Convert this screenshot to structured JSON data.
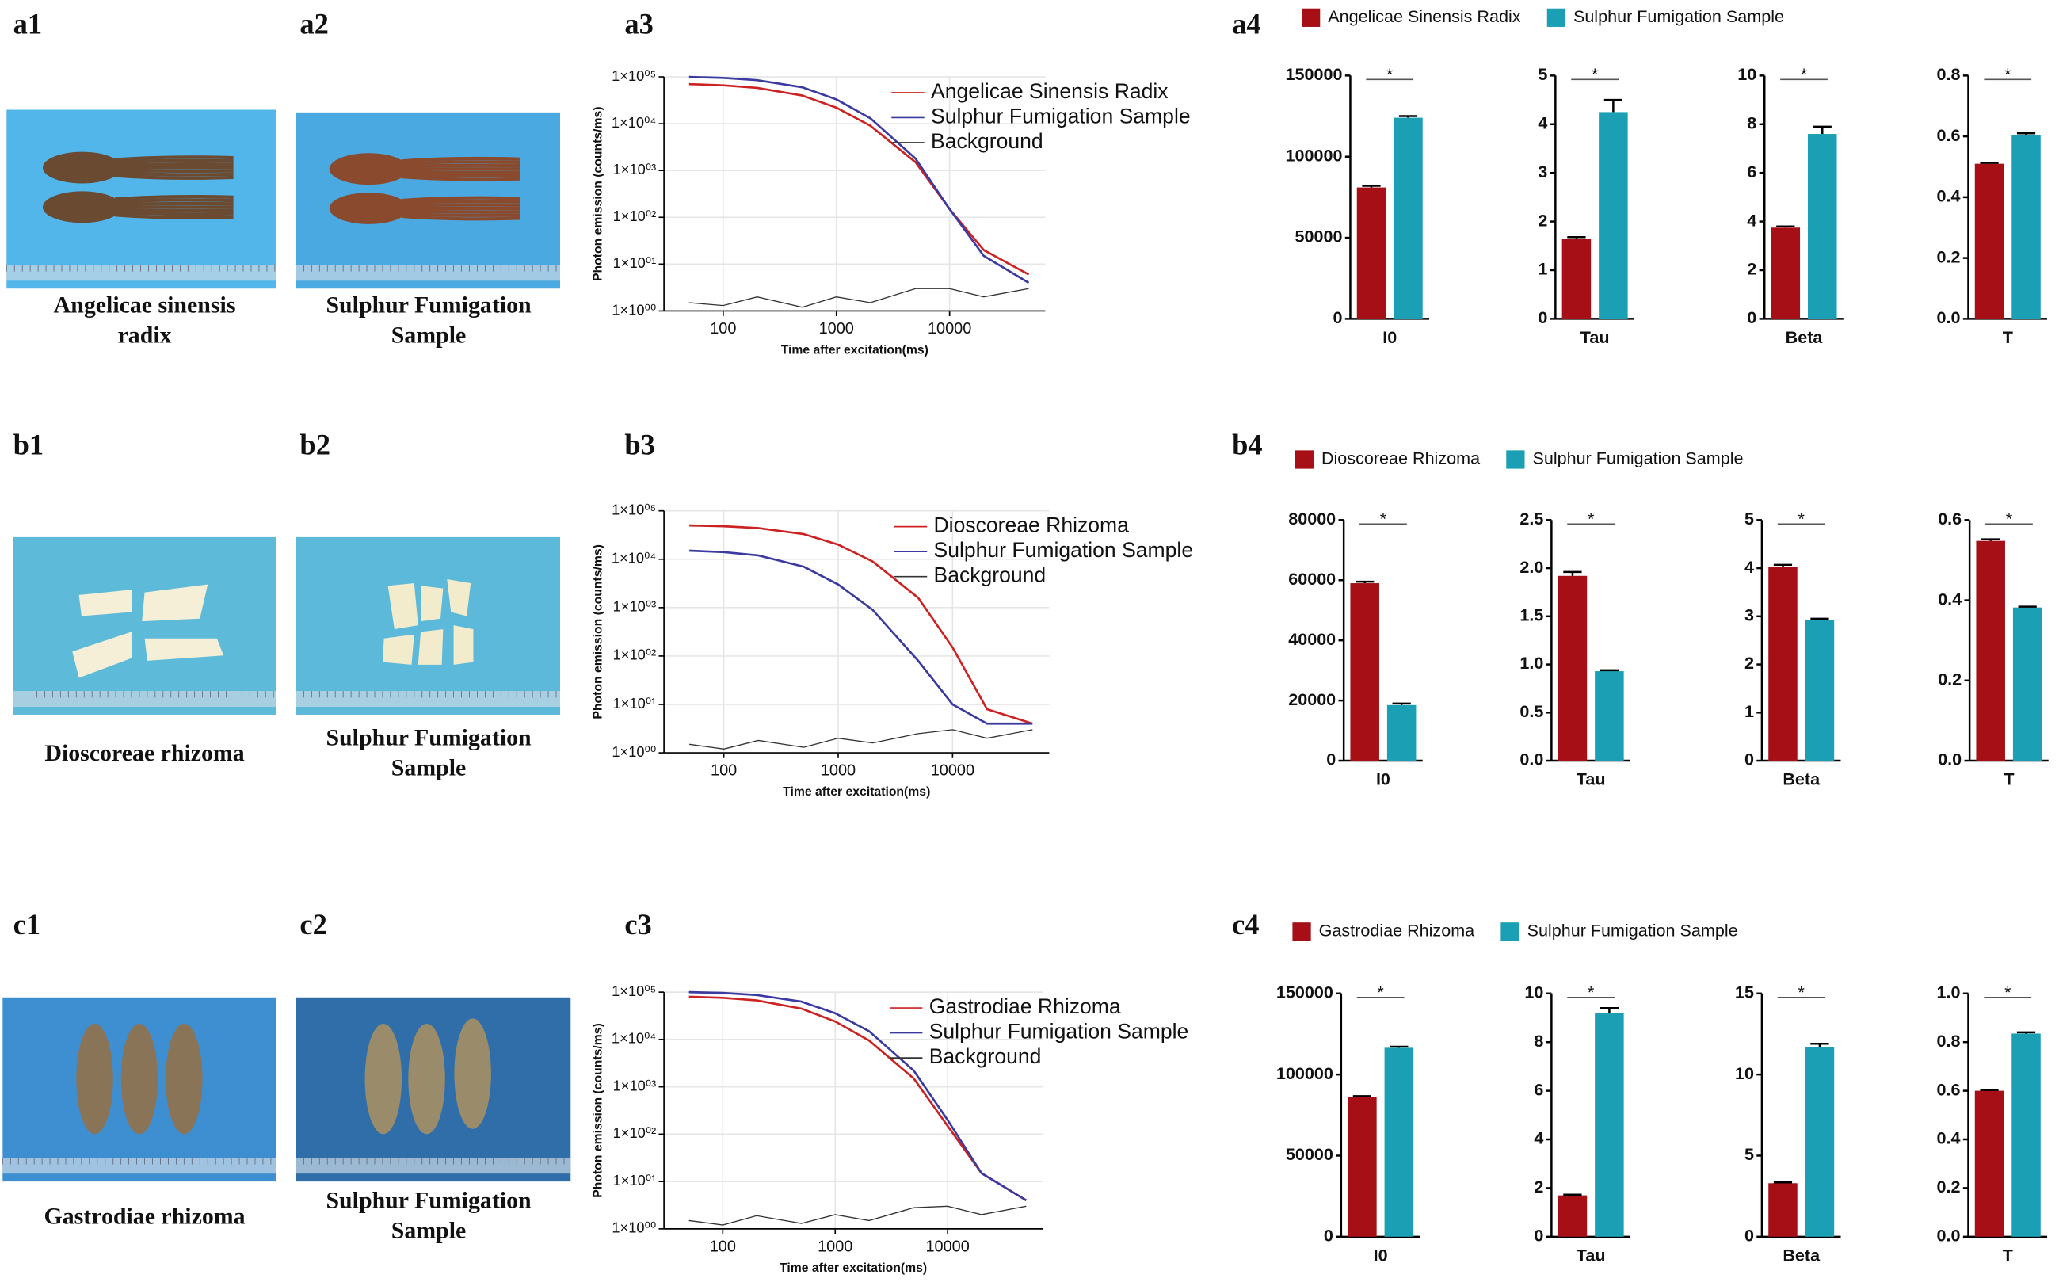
{
  "photos": [
    {
      "label": "a1",
      "caption": [
        "Angelicae sinensis",
        "radix"
      ]
    },
    {
      "label": "a2",
      "caption": [
        "Sulphur Fumigation",
        "Sample"
      ]
    },
    {
      "label": "b1",
      "caption": [
        "Dioscoreae rhizoma"
      ]
    },
    {
      "label": "b2",
      "caption": [
        "Sulphur Fumigation",
        "Sample"
      ]
    },
    {
      "label": "c1",
      "caption": [
        "Gastrodiae rhizoma"
      ]
    },
    {
      "label": "c2",
      "caption": [
        "Sulphur Fumigation",
        "Sample"
      ]
    }
  ],
  "chart_data": [
    {
      "type": "line",
      "label": "a3",
      "xlabel": "Time after excitation(ms)",
      "ylabel": "Photon emission (counts/ms)",
      "xscale": "log",
      "yscale": "log",
      "grid": true,
      "x": [
        50,
        100,
        200,
        500,
        1000,
        2000,
        5000,
        10000,
        20000,
        50000
      ],
      "series": [
        {
          "name": "Angelicae Sinensis Radix",
          "color": "#cc2222",
          "values": [
            70000,
            66000,
            58000,
            40000,
            22000,
            9000,
            1500,
            150,
            20,
            6
          ]
        },
        {
          "name": "Sulphur Fumigation Sample",
          "color": "#3a3aa0",
          "values": [
            100000,
            95000,
            85000,
            60000,
            33000,
            13000,
            1800,
            150,
            15,
            4
          ]
        },
        {
          "name": "Background",
          "color": "#333333",
          "values": [
            1.5,
            1.3,
            2,
            1.2,
            2,
            1.5,
            3,
            3,
            2,
            3
          ]
        }
      ],
      "xlim": [
        30,
        70000
      ],
      "ylim": [
        1,
        100000
      ],
      "xticks": [
        100,
        1000,
        10000
      ],
      "yticks": [
        {
          "value": 1,
          "label": "1×10⁰⁰"
        },
        {
          "value": 10,
          "label": "1×10⁰¹"
        },
        {
          "value": 100,
          "label": "1×10⁰²"
        },
        {
          "value": 1000,
          "label": "1×10⁰³"
        },
        {
          "value": 10000,
          "label": "1×10⁰⁴"
        },
        {
          "value": 100000,
          "label": "1×10⁰⁵"
        }
      ]
    },
    {
      "type": "bar",
      "label": "a4",
      "series": [
        {
          "name": "Angelicae Sinensis Radix",
          "color": "#a50f15"
        },
        {
          "name": "Sulphur Fumigation Sample",
          "color": "#1b9fb4"
        }
      ],
      "subplots": [
        {
          "category": "I0",
          "values": [
            81000,
            124000
          ],
          "errors": [
            1000,
            1000
          ],
          "annotation": "*",
          "ylim": [
            0,
            150000
          ],
          "yticks": [
            0,
            50000,
            100000,
            150000
          ]
        },
        {
          "category": "Tau",
          "values": [
            1.65,
            4.25
          ],
          "errors": [
            0.03,
            0.25
          ],
          "annotation": "*",
          "ylim": [
            0,
            5
          ],
          "yticks": [
            0,
            1,
            2,
            3,
            4,
            5
          ]
        },
        {
          "category": "Beta",
          "values": [
            3.75,
            7.6
          ],
          "errors": [
            0.05,
            0.3
          ],
          "annotation": "*",
          "ylim": [
            0,
            10
          ],
          "yticks": [
            0,
            2,
            4,
            6,
            8,
            10
          ]
        },
        {
          "category": "T",
          "values": [
            0.51,
            0.605
          ],
          "errors": [
            0.003,
            0.005
          ],
          "annotation": "*",
          "ylim": [
            0,
            0.8
          ],
          "yticks": [
            {
              "value": 0,
              "label": "0.0"
            },
            0.2,
            0.4,
            0.6,
            0.8
          ]
        }
      ]
    },
    {
      "type": "line",
      "label": "b3",
      "xlabel": "Time after excitation(ms)",
      "ylabel": "Photon emission (counts/ms)",
      "xscale": "log",
      "yscale": "log",
      "grid": true,
      "x": [
        50,
        100,
        200,
        500,
        1000,
        2000,
        5000,
        10000,
        20000,
        50000
      ],
      "series": [
        {
          "name": "Dioscoreae Rhizoma",
          "color": "#cc2222",
          "values": [
            50000,
            48000,
            44000,
            33000,
            20000,
            9000,
            1600,
            150,
            8,
            4
          ]
        },
        {
          "name": "Sulphur Fumigation Sample",
          "color": "#3a3aa0",
          "values": [
            15000,
            14000,
            12000,
            7000,
            3000,
            900,
            80,
            10,
            4,
            4
          ]
        },
        {
          "name": "Background",
          "color": "#333333",
          "values": [
            1.5,
            1.2,
            1.8,
            1.3,
            2,
            1.6,
            2.5,
            3,
            2,
            3
          ]
        }
      ],
      "xlim": [
        30,
        70000
      ],
      "ylim": [
        1,
        100000
      ],
      "xticks": [
        100,
        1000,
        10000
      ],
      "yticks": [
        {
          "value": 1,
          "label": "1×10⁰⁰"
        },
        {
          "value": 10,
          "label": "1×10⁰¹"
        },
        {
          "value": 100,
          "label": "1×10⁰²"
        },
        {
          "value": 1000,
          "label": "1×10⁰³"
        },
        {
          "value": 10000,
          "label": "1×10⁰⁴"
        },
        {
          "value": 100000,
          "label": "1×10⁰⁵"
        }
      ]
    },
    {
      "type": "bar",
      "label": "b4",
      "series": [
        {
          "name": "Dioscoreae Rhizoma",
          "color": "#a50f15"
        },
        {
          "name": "Sulphur Fumigation Sample",
          "color": "#1b9fb4"
        }
      ],
      "subplots": [
        {
          "category": "I0",
          "values": [
            59000,
            18500
          ],
          "errors": [
            500,
            500
          ],
          "annotation": "*",
          "ylim": [
            0,
            80000
          ],
          "yticks": [
            0,
            20000,
            40000,
            60000,
            80000
          ]
        },
        {
          "category": "Tau",
          "values": [
            1.92,
            0.93
          ],
          "errors": [
            0.04,
            0.01
          ],
          "annotation": "*",
          "ylim": [
            0,
            2.5
          ],
          "yticks": [
            {
              "value": 0,
              "label": "0.0"
            },
            0.5,
            {
              "value": 1,
              "label": "1.0"
            },
            1.5,
            {
              "value": 2,
              "label": "2.0"
            },
            2.5
          ]
        },
        {
          "category": "Beta",
          "values": [
            4.02,
            2.93
          ],
          "errors": [
            0.05,
            0.02
          ],
          "annotation": "*",
          "ylim": [
            0,
            5
          ],
          "yticks": [
            0,
            1,
            2,
            3,
            4,
            5
          ]
        },
        {
          "category": "T",
          "values": [
            0.548,
            0.382
          ],
          "errors": [
            0.004,
            0.002
          ],
          "annotation": "*",
          "ylim": [
            0,
            0.6
          ],
          "yticks": [
            {
              "value": 0,
              "label": "0.0"
            },
            0.2,
            0.4,
            0.6
          ]
        }
      ]
    },
    {
      "type": "line",
      "label": "c3",
      "xlabel": "Time after excitation(ms)",
      "ylabel": "Photon emission (counts/ms)",
      "xscale": "log",
      "yscale": "log",
      "grid": true,
      "x": [
        50,
        100,
        200,
        500,
        1000,
        2000,
        5000,
        10000,
        20000,
        50000
      ],
      "series": [
        {
          "name": "Gastrodiae Rhizoma",
          "color": "#cc2222",
          "values": [
            80000,
            76000,
            67000,
            45000,
            24000,
            9500,
            1500,
            150,
            15,
            4
          ]
        },
        {
          "name": "Sulphur Fumigation Sample",
          "color": "#3a3aa0",
          "values": [
            100000,
            96000,
            87000,
            63000,
            36000,
            15000,
            2200,
            200,
            15,
            4
          ]
        },
        {
          "name": "Background",
          "color": "#333333",
          "values": [
            1.5,
            1.2,
            1.9,
            1.3,
            2,
            1.5,
            2.8,
            3,
            2,
            3
          ]
        }
      ],
      "xlim": [
        30,
        70000
      ],
      "ylim": [
        1,
        100000
      ],
      "xticks": [
        100,
        1000,
        10000
      ],
      "yticks": [
        {
          "value": 1,
          "label": "1×10⁰⁰"
        },
        {
          "value": 10,
          "label": "1×10⁰¹"
        },
        {
          "value": 100,
          "label": "1×10⁰²"
        },
        {
          "value": 1000,
          "label": "1×10⁰³"
        },
        {
          "value": 10000,
          "label": "1×10⁰⁴"
        },
        {
          "value": 100000,
          "label": "1×10⁰⁵"
        }
      ]
    },
    {
      "type": "bar",
      "label": "c4",
      "series": [
        {
          "name": "Gastrodiae Rhizoma",
          "color": "#a50f15"
        },
        {
          "name": "Sulphur Fumigation Sample",
          "color": "#1b9fb4"
        }
      ],
      "subplots": [
        {
          "category": "I0",
          "values": [
            86000,
            116500
          ],
          "errors": [
            700,
            700
          ],
          "annotation": "*",
          "ylim": [
            0,
            150000
          ],
          "yticks": [
            0,
            50000,
            100000,
            150000
          ]
        },
        {
          "category": "Tau",
          "values": [
            1.7,
            9.2
          ],
          "errors": [
            0.03,
            0.2
          ],
          "annotation": "*",
          "ylim": [
            0,
            10
          ],
          "yticks": [
            0,
            2,
            4,
            6,
            8,
            10
          ]
        },
        {
          "category": "Beta",
          "values": [
            3.3,
            11.7
          ],
          "errors": [
            0.05,
            0.2
          ],
          "annotation": "*",
          "ylim": [
            0,
            15
          ],
          "yticks": [
            0,
            5,
            10,
            15
          ]
        },
        {
          "category": "T",
          "values": [
            0.6,
            0.835
          ],
          "errors": [
            0.003,
            0.005
          ],
          "annotation": "*",
          "ylim": [
            0,
            1
          ],
          "yticks": [
            {
              "value": 0,
              "label": "0.0"
            },
            0.2,
            0.4,
            0.6,
            0.8,
            {
              "value": 1,
              "label": "1.0"
            }
          ]
        }
      ]
    }
  ]
}
